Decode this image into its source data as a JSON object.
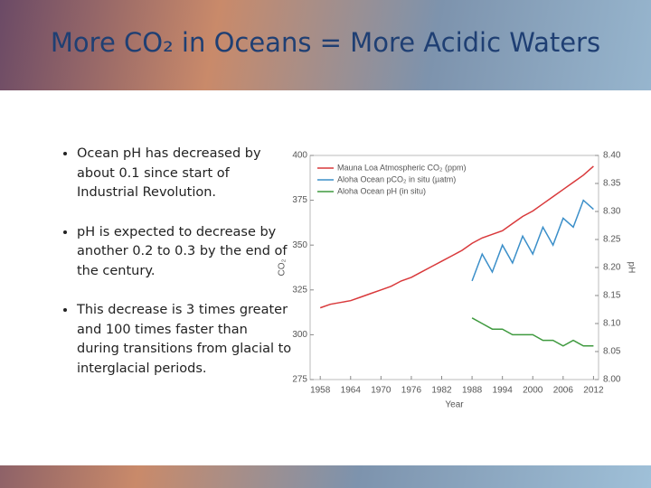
{
  "title": "More CO₂ in Oceans = More Acidic Waters",
  "bullets": [
    "Ocean pH has decreased by about 0.1 since start of Industrial Revolution.",
    "pH is expected to decrease by another 0.2 to 0.3 by the end of the century.",
    "This decrease is 3 times greater and 100 times faster than during transitions from glacial to interglacial periods."
  ],
  "chart_data": {
    "type": "line",
    "x_label": "Year",
    "y_label": "CO₂",
    "y2_label": "pH",
    "x": [
      1958,
      1960,
      1962,
      1964,
      1966,
      1968,
      1970,
      1972,
      1974,
      1976,
      1978,
      1980,
      1982,
      1984,
      1986,
      1988,
      1990,
      1992,
      1994,
      1996,
      1998,
      2000,
      2002,
      2004,
      2006,
      2008,
      2010,
      2012
    ],
    "series": [
      {
        "name": "Mauna Loa Atmospheric CO₂ (ppm)",
        "color": "#d9393b",
        "values": [
          315,
          317,
          318,
          319,
          321,
          323,
          325,
          327,
          330,
          332,
          335,
          338,
          341,
          344,
          347,
          351,
          354,
          356,
          358,
          362,
          366,
          369,
          373,
          377,
          381,
          385,
          389,
          394
        ]
      },
      {
        "name": "Aloha Ocean pCO₂ in situ (µatm)",
        "color": "#3b8fc9",
        "values": [
          null,
          null,
          null,
          null,
          null,
          null,
          null,
          null,
          null,
          null,
          null,
          null,
          null,
          null,
          null,
          330,
          345,
          335,
          350,
          340,
          355,
          345,
          360,
          350,
          365,
          360,
          375,
          370
        ]
      },
      {
        "name": "Aloha Ocean pH (in situ)",
        "color": "#3f9a3f",
        "axis": "y2",
        "values": [
          null,
          null,
          null,
          null,
          null,
          null,
          null,
          null,
          null,
          null,
          null,
          null,
          null,
          null,
          null,
          8.11,
          8.1,
          8.09,
          8.09,
          8.08,
          8.08,
          8.08,
          8.07,
          8.07,
          8.06,
          8.07,
          8.06,
          8.06
        ]
      }
    ],
    "xlim": [
      1956,
      2013
    ],
    "xticks": [
      1958,
      1964,
      1970,
      1976,
      1982,
      1988,
      1994,
      2000,
      2006,
      2012
    ],
    "ylim": [
      275,
      400
    ],
    "yticks": [
      275,
      300,
      325,
      350,
      375,
      400
    ],
    "y2lim": [
      8,
      8.4
    ],
    "y2ticks": [
      {
        "value": 8,
        "label": "8.00"
      },
      8.05,
      {
        "value": 8.1,
        "label": "8.10"
      },
      8.15,
      {
        "value": 8.2,
        "label": "8.20"
      },
      8.25,
      {
        "value": 8.3,
        "label": "8.30"
      },
      8.35,
      {
        "value": 8.4,
        "label": "8.40"
      }
    ],
    "legend": "upper left"
  }
}
